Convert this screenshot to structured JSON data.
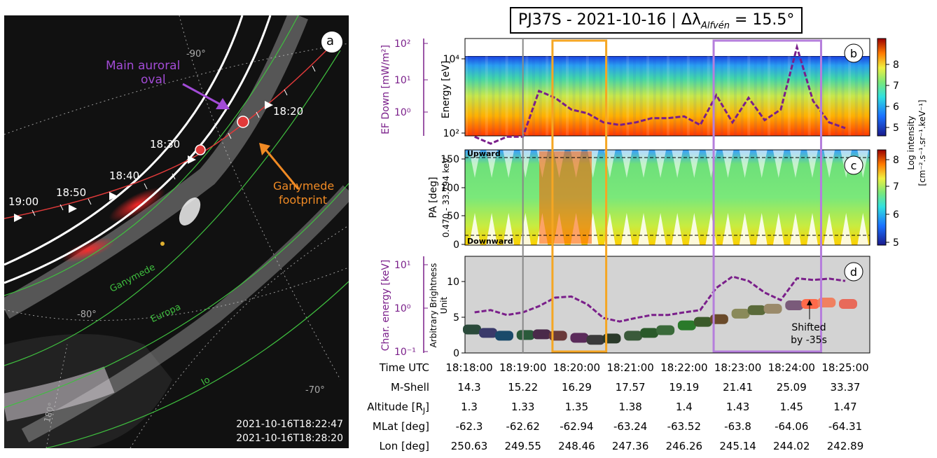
{
  "left_image": {
    "panel_letter": "a",
    "main_oval_label": [
      "Main auroral",
      "oval"
    ],
    "footprint_label": [
      "Ganymede",
      "footprint"
    ],
    "time_marks": [
      "19:00",
      "18:50",
      "18:40",
      "18:30",
      "18:20"
    ],
    "lat_labels": [
      "-90°",
      "-80°",
      "-70°"
    ],
    "lon_label": "180°",
    "moon_labels": [
      "Ganymede",
      "Europa",
      "Io"
    ],
    "timestamps": [
      "2021-10-16T18:22:47",
      "2021-10-16T18:28:20"
    ],
    "colors": {
      "main_oval_arrow": "#a24bd6",
      "footprint_arrow": "#f08a24",
      "moon_contours": "#3fbf3f",
      "trajectory": "#e03a3a"
    }
  },
  "title": {
    "prefix": "PJ37S - 2021-10-16 | Δλ",
    "subscript": "Alfvén",
    "suffix": " = 15.5°"
  },
  "panels": {
    "b": {
      "letter": "b",
      "ylabel": "Energy [eV]",
      "y_ticks": [
        "10²",
        "10⁴"
      ],
      "left_axis_label": "EF Down [mW/m²]",
      "left_ticks": [
        "10²",
        "10¹",
        "10⁰"
      ],
      "colorbar_ticks": [
        "8",
        "7",
        "6",
        "5"
      ]
    },
    "c": {
      "letter": "c",
      "ylabel": "PA [deg]",
      "ylabel2": "0.470 - 33.794 keV",
      "y_ticks": [
        "150",
        "100",
        "50",
        "0"
      ],
      "upward_label": "Upward",
      "downward_label": "Downward",
      "colorbar_ticks": [
        "8",
        "7",
        "6",
        "5"
      ]
    },
    "d": {
      "letter": "d",
      "ylabel": [
        "Arbitrary Brightness",
        "Unit"
      ],
      "y_ticks": [
        "10",
        "5",
        "0"
      ],
      "left_axis_label": "Char. energy [keV]",
      "left_ticks": [
        "10¹",
        "10⁰",
        "10⁻¹"
      ],
      "annotation": [
        "Shifted",
        "by -35s"
      ]
    },
    "colorbar_label": [
      "Log intensity",
      "[cm⁻².s⁻¹.sr⁻¹.keV⁻¹]"
    ],
    "colors": {
      "orange_box": "#f5a623",
      "purple_box": "#b57edc",
      "ef_line": "#7a1f8a",
      "vertical_line": "#888888"
    }
  },
  "chart_data": {
    "type": "line",
    "x_labels": [
      "18:18:00",
      "18:19:00",
      "18:20:00",
      "18:21:00",
      "18:22:00",
      "18:23:00",
      "18:24:00",
      "18:25:00"
    ],
    "brightness_series": {
      "name": "",
      "x_min": [
        0,
        0.3,
        0.6,
        1.0,
        1.3,
        1.6,
        2.0,
        2.3,
        2.6,
        3.0,
        3.3,
        3.6,
        4.0,
        4.3,
        4.6,
        5.0,
        5.3,
        5.6,
        6.0,
        6.3,
        6.6,
        7.0
      ],
      "values": [
        3.5,
        3.0,
        2.6,
        2.7,
        2.8,
        2.6,
        2.3,
        2.0,
        2.2,
        2.6,
        3.0,
        3.4,
        4.1,
        4.6,
        5.0,
        5.8,
        6.3,
        6.5,
        7.0,
        7.2,
        7.4,
        7.2
      ],
      "ylim": [
        0,
        14
      ]
    },
    "char_energy_series": {
      "name": "",
      "x_min": [
        0.1,
        0.4,
        0.7,
        1.0,
        1.3,
        1.6,
        1.9,
        2.2,
        2.5,
        2.8,
        3.1,
        3.4,
        3.7,
        4.0,
        4.3,
        4.6,
        4.9,
        5.2,
        5.5,
        5.8,
        6.1,
        6.4,
        6.7,
        7.0
      ],
      "values_keV": [
        0.8,
        0.9,
        0.7,
        0.8,
        1.1,
        1.7,
        1.8,
        1.2,
        0.6,
        0.5,
        0.6,
        0.7,
        0.7,
        0.8,
        0.9,
        2.8,
        5.0,
        4.0,
        2.2,
        1.5,
        4.6,
        4.2,
        4.5,
        4.0
      ],
      "ylim_log10": [
        -1,
        1.15
      ]
    },
    "ef_down_series": {
      "x_min": [
        0.1,
        0.4,
        0.7,
        1.0,
        1.3,
        1.6,
        1.9,
        2.2,
        2.5,
        2.8,
        3.1,
        3.4,
        3.7,
        4.0,
        4.3,
        4.6,
        4.9,
        5.2,
        5.5,
        5.8,
        6.1,
        6.4,
        6.7,
        7.0
      ],
      "values_mWm2": [
        0.3,
        0.2,
        0.3,
        0.3,
        4.5,
        3.0,
        1.5,
        1.2,
        0.7,
        0.6,
        0.7,
        0.9,
        0.9,
        1.0,
        0.6,
        3.5,
        0.7,
        3.0,
        0.8,
        1.5,
        60.0,
        2.5,
        0.7,
        0.5
      ],
      "ylim_log10": [
        -0.5,
        2.0
      ]
    },
    "highlight_ranges_min": [
      [
        1.55,
        2.55
      ],
      [
        4.55,
        6.55
      ]
    ],
    "vertical_line_min": 1.0
  },
  "table": {
    "rows": [
      {
        "label": "Time UTC",
        "values": [
          "18:18:00",
          "18:19:00",
          "18:20:00",
          "18:21:00",
          "18:22:00",
          "18:23:00",
          "18:24:00",
          "18:25:00"
        ]
      },
      {
        "label": "M-Shell",
        "values": [
          "14.3",
          "15.22",
          "16.29",
          "17.57",
          "19.19",
          "21.41",
          "25.09",
          "33.37"
        ]
      },
      {
        "label": "Altitude [R",
        "label_sub": "J",
        "label_end": "]",
        "values": [
          "1.3",
          "1.33",
          "1.35",
          "1.38",
          "1.4",
          "1.43",
          "1.45",
          "1.47"
        ]
      },
      {
        "label": "MLat [deg]",
        "values": [
          "-62.3",
          "-62.62",
          "-62.94",
          "-63.24",
          "-63.52",
          "-63.8",
          "-64.06",
          "-64.31"
        ]
      },
      {
        "label": "Lon [deg]",
        "values": [
          "250.63",
          "249.55",
          "248.46",
          "247.36",
          "246.26",
          "245.14",
          "244.02",
          "242.89"
        ]
      }
    ]
  }
}
